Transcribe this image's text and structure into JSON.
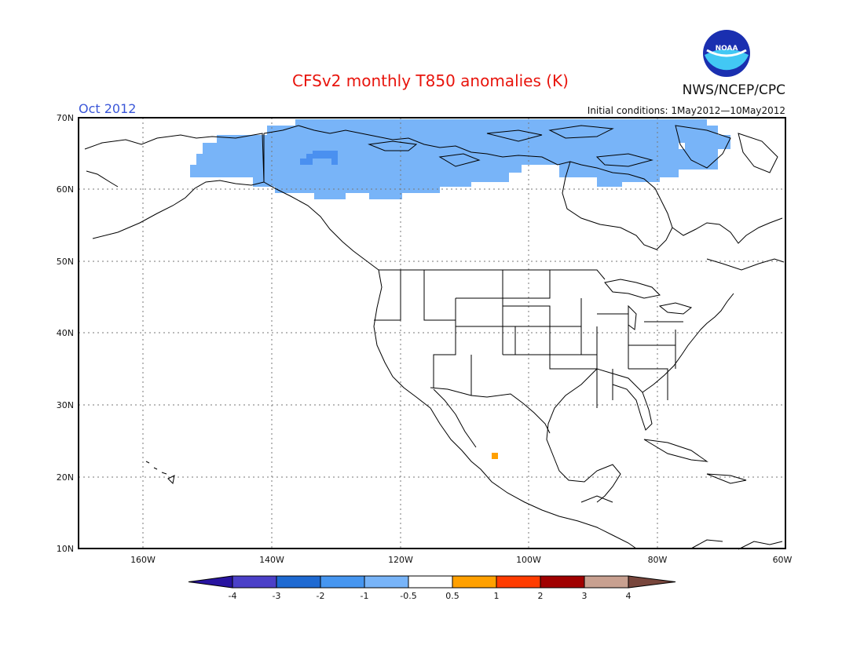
{
  "title": "CFSv2 monthly T850 anomalies (K)",
  "month": "Oct 2012",
  "agency": "NWS/NCEP/CPC",
  "logo_text": "NOAA",
  "initial_conditions": "Initial conditions: 1May2012—10May2012",
  "colors": {
    "title": "#e8140c",
    "month": "#3a56d8",
    "light_blue": "#78b4f8",
    "mid_blue": "#4a90f0",
    "orange": "#ffa000"
  },
  "lat_ticks": [
    "70N",
    "60N",
    "50N",
    "40N",
    "30N",
    "20N",
    "10N"
  ],
  "lon_ticks": [
    "160W",
    "140W",
    "120W",
    "100W",
    "80W",
    "60W"
  ],
  "colorbar": {
    "labels": [
      "-4",
      "-3",
      "-2",
      "-1",
      "-0.5",
      "0.5",
      "1",
      "2",
      "3",
      "4"
    ],
    "colors": [
      "#2814a0",
      "#4b40c8",
      "#1e6ad2",
      "#4696f0",
      "#78b4f8",
      "#ffffff",
      "#ffa000",
      "#ff3c00",
      "#a00000",
      "#c8a090",
      "#78463c"
    ]
  }
}
